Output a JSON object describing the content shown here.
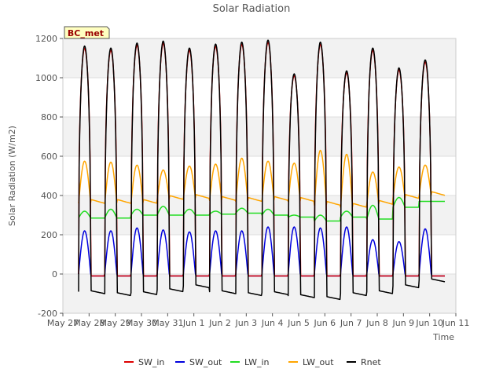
{
  "chart_data": {
    "type": "line",
    "title": "Solar Radiation",
    "xlabel": "Time",
    "ylabel": "Solar Radiation (W/m2)",
    "site_label": "BC_met",
    "ylim": [
      -200,
      1200
    ],
    "yticks": [
      -200,
      0,
      200,
      400,
      600,
      800,
      1000,
      1200
    ],
    "xlim": [
      27,
      42
    ],
    "xticks": [
      {
        "x": 27,
        "label": "May 27"
      },
      {
        "x": 28,
        "label": "May 28"
      },
      {
        "x": 29,
        "label": "May 29"
      },
      {
        "x": 30,
        "label": "May 30"
      },
      {
        "x": 31,
        "label": "May 31"
      },
      {
        "x": 32,
        "label": "Jun 1"
      },
      {
        "x": 33,
        "label": "Jun 2"
      },
      {
        "x": 34,
        "label": "Jun 3"
      },
      {
        "x": 35,
        "label": "Jun 4"
      },
      {
        "x": 36,
        "label": "Jun 5"
      },
      {
        "x": 37,
        "label": "Jun 6"
      },
      {
        "x": 38,
        "label": "Jun 7"
      },
      {
        "x": 39,
        "label": "Jun 8"
      },
      {
        "x": 40,
        "label": "Jun 9"
      },
      {
        "x": 41,
        "label": "Jun 10"
      },
      {
        "x": 42,
        "label": "Jun 11"
      }
    ],
    "x_start": 27.6,
    "x_end": 41.3,
    "grid": "horizontal bands",
    "legend_position": "bottom",
    "days_start": [
      27.6,
      28.6,
      29.6,
      30.6,
      31.6,
      32.6,
      33.6,
      34.6,
      35.6,
      36.6,
      37.6,
      38.6,
      39.6,
      40.6
    ],
    "sw_in_peaks": [
      1150,
      1140,
      1165,
      1175,
      1140,
      1160,
      1170,
      1180,
      1010,
      1170,
      1025,
      1140,
      1040,
      1080
    ],
    "sw_out_peaks": [
      220,
      220,
      235,
      225,
      215,
      220,
      220,
      240,
      240,
      235,
      240,
      175,
      165,
      230
    ],
    "lw_out_peaks": [
      575,
      570,
      555,
      530,
      550,
      560,
      590,
      575,
      565,
      630,
      610,
      520,
      545,
      555
    ],
    "lw_out_base": [
      360,
      360,
      360,
      380,
      385,
      375,
      370,
      375,
      370,
      350,
      340,
      355,
      385,
      400
    ],
    "lw_in_day": [
      320,
      330,
      330,
      345,
      330,
      320,
      335,
      330,
      300,
      300,
      320,
      350,
      390,
      370
    ],
    "lw_in_night": [
      285,
      285,
      300,
      300,
      300,
      305,
      310,
      300,
      290,
      270,
      290,
      280,
      340,
      370
    ],
    "rnet_night": [
      -90,
      -100,
      -95,
      -80,
      -60,
      -90,
      -100,
      -95,
      -110,
      -120,
      -100,
      -90,
      -60,
      -30
    ],
    "series": [
      {
        "name": "SW_in",
        "color": "#dd0000"
      },
      {
        "name": "SW_out",
        "color": "#0000dd"
      },
      {
        "name": "LW_in",
        "color": "#22dd22"
      },
      {
        "name": "LW_out",
        "color": "#ffa500"
      },
      {
        "name": "Rnet",
        "color": "#000000"
      }
    ]
  }
}
